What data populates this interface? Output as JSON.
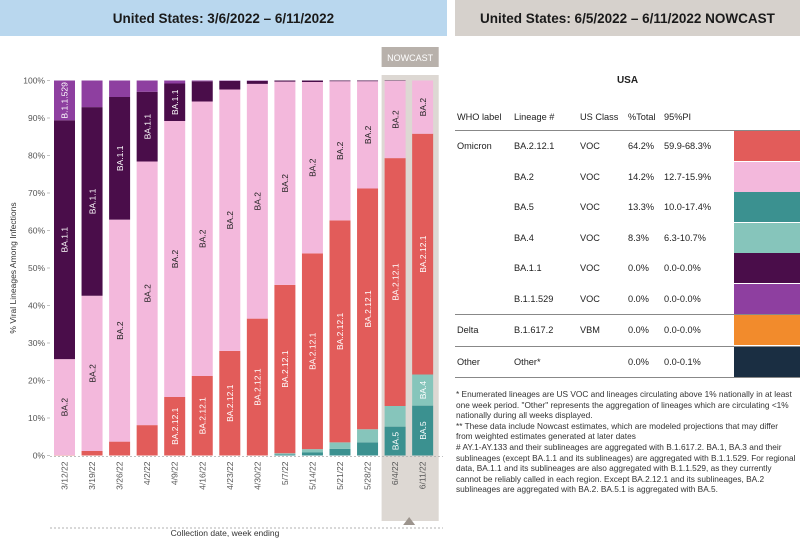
{
  "header_left": "United States: 3/6/2022 – 6/11/2022",
  "header_right": "United States: 6/5/2022 – 6/11/2022 NOWCAST",
  "nowcast_label": "NOWCAST",
  "region_label": "USA",
  "table": {
    "headers": [
      "WHO label",
      "Lineage #",
      "US Class",
      "%Total",
      "95%PI"
    ],
    "rows": [
      {
        "who": "Omicron",
        "lineage": "BA.2.12.1",
        "cls": "VOC",
        "pct": "64.2%",
        "pi": "59.9-68.3%",
        "color": "#e25c5a"
      },
      {
        "who": "",
        "lineage": "BA.2",
        "cls": "VOC",
        "pct": "14.2%",
        "pi": "12.7-15.9%",
        "color": "#f3b8dc"
      },
      {
        "who": "",
        "lineage": "BA.5",
        "cls": "VOC",
        "pct": "13.3%",
        "pi": "10.0-17.4%",
        "color": "#3b9190"
      },
      {
        "who": "",
        "lineage": "BA.4",
        "cls": "VOC",
        "pct": "8.3%",
        "pi": "6.3-10.7%",
        "color": "#86c5bb"
      },
      {
        "who": "",
        "lineage": "BA.1.1",
        "cls": "VOC",
        "pct": "0.0%",
        "pi": "0.0-0.0%",
        "color": "#4a0d4a"
      },
      {
        "who": "",
        "lineage": "B.1.1.529",
        "cls": "VOC",
        "pct": "0.0%",
        "pi": "0.0-0.0%",
        "color": "#8e3fa0"
      },
      {
        "who": "Delta",
        "lineage": "B.1.617.2",
        "cls": "VBM",
        "pct": "0.0%",
        "pi": "0.0-0.0%",
        "color": "#f28b2c"
      },
      {
        "who": "Other",
        "lineage": "Other*",
        "cls": "",
        "pct": "0.0%",
        "pi": "0.0-0.1%",
        "color": "#1a2e42"
      }
    ]
  },
  "annotations": [
    "*     Enumerated lineages are US VOC and lineages circulating above 1% nationally in at least one week period. \"Other\" represents the aggregation of lineages which are circulating <1% nationally during all weeks displayed.",
    "**     These data include Nowcast estimates, which are modeled projections that may differ from weighted estimates generated at later dates",
    "#     AY.1-AY.133 and their sublineages are aggregated with B.1.617.2. BA.1, BA.3 and their sublineages (except BA.1.1 and its sublineages) are aggregated with B.1.1.529. For regional data, BA.1.1 and its sublineages are also aggregated with B.1.1.529, as they currently cannot be reliably called in each region. Except BA.2.12.1 and its sublineages, BA.2 sublineages are aggregated with BA.2. BA.5.1 is aggregated with BA.5."
  ],
  "chart_data": {
    "type": "bar",
    "stacked": true,
    "ylabel": "% Viral Lineages Among Infections",
    "xlabel": "Collection date, week ending",
    "ylim": [
      0,
      100
    ],
    "yticks": [
      "0%",
      "10%",
      "20%",
      "30%",
      "40%",
      "50%",
      "60%",
      "70%",
      "80%",
      "90%",
      "100%"
    ],
    "categories": [
      "3/12/22",
      "3/19/22",
      "3/26/22",
      "4/2/22",
      "4/9/22",
      "4/16/22",
      "4/23/22",
      "4/30/22",
      "5/7/22",
      "5/14/22",
      "5/21/22",
      "5/28/22",
      "6/4/22",
      "6/11/22"
    ],
    "nowcast_from_index": 12,
    "series": [
      {
        "name": "BA.5",
        "color": "#3b9190",
        "values": [
          0,
          0,
          0,
          0,
          0,
          0,
          0,
          0,
          0.3,
          0.8,
          1.8,
          3.5,
          7.7,
          13.3
        ]
      },
      {
        "name": "BA.4",
        "color": "#86c5bb",
        "values": [
          0,
          0,
          0,
          0,
          0,
          0,
          0,
          0,
          0.3,
          0.9,
          1.7,
          3.5,
          5.5,
          8.3
        ]
      },
      {
        "name": "BA.2.12.1",
        "color": "#e25c5a",
        "values": [
          0.1,
          1.2,
          3.7,
          8.1,
          15.6,
          21.2,
          27.9,
          36.5,
          44.9,
          52.2,
          59.2,
          64.2,
          66.1,
          64.2
        ]
      },
      {
        "name": "BA.2",
        "color": "#f3b8dc",
        "values": [
          25.6,
          41.4,
          59.2,
          70.3,
          73.6,
          73.2,
          69.7,
          62.6,
          54.2,
          45.7,
          37.1,
          28.6,
          20.6,
          14.2
        ]
      },
      {
        "name": "BA.1.1",
        "color": "#4a0d4a",
        "values": [
          63.7,
          50.3,
          32.7,
          18.6,
          10.0,
          5.4,
          2.3,
          0.8,
          0.3,
          0.4,
          0.2,
          0.2,
          0.1,
          0.0
        ]
      },
      {
        "name": "B.1.1.529",
        "color": "#8e3fa0",
        "values": [
          10.6,
          7.1,
          4.4,
          3.0,
          0.8,
          0.2,
          0.1,
          0.1,
          0,
          0,
          0,
          0,
          0,
          0
        ]
      }
    ],
    "bar_labels": [
      {
        "index": 0,
        "series": "BA.2",
        "text": "BA.2"
      },
      {
        "index": 0,
        "series": "BA.1.1",
        "text": "BA.1.1"
      },
      {
        "index": 0,
        "series": "B.1.1.529",
        "text": "B.1.1.529"
      },
      {
        "index": 1,
        "series": "BA.2",
        "text": "BA.2"
      },
      {
        "index": 1,
        "series": "BA.1.1",
        "text": "BA.1.1"
      },
      {
        "index": 2,
        "series": "BA.2",
        "text": "BA.2"
      },
      {
        "index": 2,
        "series": "BA.1.1",
        "text": "BA.1.1"
      },
      {
        "index": 3,
        "series": "BA.2",
        "text": "BA.2"
      },
      {
        "index": 3,
        "series": "BA.1.1",
        "text": "BA.1.1"
      },
      {
        "index": 4,
        "series": "BA.2.12.1",
        "text": "BA.2.12.1"
      },
      {
        "index": 4,
        "series": "BA.2",
        "text": "BA.2"
      },
      {
        "index": 4,
        "series": "BA.1.1",
        "text": "BA.1.1"
      },
      {
        "index": 5,
        "series": "BA.2.12.1",
        "text": "BA.2.12.1"
      },
      {
        "index": 5,
        "series": "BA.2",
        "text": "BA.2"
      },
      {
        "index": 6,
        "series": "BA.2.12.1",
        "text": "BA.2.12.1"
      },
      {
        "index": 6,
        "series": "BA.2",
        "text": "BA.2"
      },
      {
        "index": 7,
        "series": "BA.2.12.1",
        "text": "BA.2.12.1"
      },
      {
        "index": 7,
        "series": "BA.2",
        "text": "BA.2"
      },
      {
        "index": 8,
        "series": "BA.2.12.1",
        "text": "BA.2.12.1"
      },
      {
        "index": 8,
        "series": "BA.2",
        "text": "BA.2"
      },
      {
        "index": 9,
        "series": "BA.2.12.1",
        "text": "BA.2.12.1"
      },
      {
        "index": 9,
        "series": "BA.2",
        "text": "BA.2"
      },
      {
        "index": 10,
        "series": "BA.2.12.1",
        "text": "BA.2.12.1"
      },
      {
        "index": 10,
        "series": "BA.2",
        "text": "BA.2"
      },
      {
        "index": 11,
        "series": "BA.2.12.1",
        "text": "BA.2.12.1"
      },
      {
        "index": 11,
        "series": "BA.2",
        "text": "BA.2"
      },
      {
        "index": 12,
        "series": "BA.5",
        "text": "BA.5"
      },
      {
        "index": 12,
        "series": "BA.2.12.1",
        "text": "BA.2.12.1"
      },
      {
        "index": 12,
        "series": "BA.2",
        "text": "BA.2"
      },
      {
        "index": 13,
        "series": "BA.5",
        "text": "BA.5"
      },
      {
        "index": 13,
        "series": "BA.4",
        "text": "BA.4"
      },
      {
        "index": 13,
        "series": "BA.2.12.1",
        "text": "BA.2.12.1"
      },
      {
        "index": 13,
        "series": "BA.2",
        "text": "BA.2"
      }
    ],
    "grid": false,
    "legend": "right-side table"
  }
}
